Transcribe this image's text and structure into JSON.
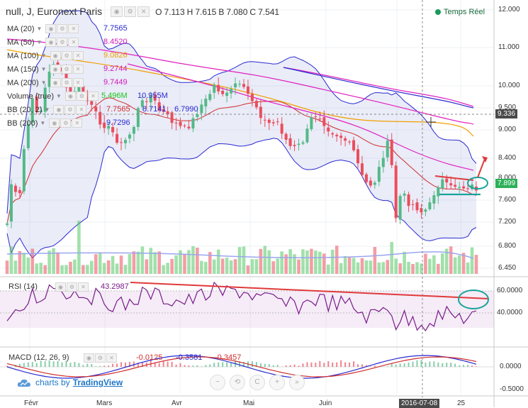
{
  "header": {
    "symbol": "null, J, Euronext Paris",
    "ohlc": [
      {
        "k": "O",
        "v": "7.113"
      },
      {
        "k": "H",
        "v": "7.615"
      },
      {
        "k": "B",
        "v": "7.080"
      },
      {
        "k": "C",
        "v": "7.541"
      }
    ],
    "live_label": "Temps Réel"
  },
  "indicators": [
    {
      "name": "MA (20)",
      "values": [
        {
          "v": "7.7565",
          "color": "#2a2ad0"
        }
      ]
    },
    {
      "name": "MA (50)",
      "values": [
        {
          "v": "8.4520",
          "color": "#d019b8"
        }
      ]
    },
    {
      "name": "MA (100)",
      "values": [
        {
          "v": "9.0826",
          "color": "#f0a000"
        }
      ]
    },
    {
      "name": "MA (150)",
      "values": [
        {
          "v": "9.2744",
          "color": "#d019b8"
        }
      ]
    },
    {
      "name": "MA (200)",
      "values": [
        {
          "v": "9.7449",
          "color": "#d019b8"
        }
      ]
    },
    {
      "name": "Volume (true)",
      "values": [
        {
          "v": "5.496M",
          "color": "#19c519"
        },
        {
          "v": "10.955M",
          "color": "#2a2ad0"
        }
      ]
    },
    {
      "name": "BB (20, 2)",
      "values": [
        {
          "v": "7.7565",
          "color": "#d12d2d"
        },
        {
          "v": "8.7141",
          "color": "#2a2ad0"
        },
        {
          "v": "6.7990",
          "color": "#2a2ad0"
        }
      ]
    },
    {
      "name": "BB (200)",
      "values": [
        {
          "v": "9.7296",
          "color": "#2a2ad0"
        }
      ]
    }
  ],
  "price_axis": [
    "12.000",
    "11.000",
    "10.000",
    "9.500",
    "9.000",
    "8.400",
    "8.000",
    "7.600",
    "7.200",
    "6.800",
    "6.450"
  ],
  "price_tags": {
    "crosshair": "9.336",
    "last": "7.899"
  },
  "rsi": {
    "label": "RSI (14)",
    "value": "43.2987",
    "axis": [
      "60.0000",
      "40.0000"
    ]
  },
  "macd": {
    "label": "MACD (12, 26, 9)",
    "values": [
      {
        "v": "-0.0125",
        "color": "#d12d2d"
      },
      {
        "v": "-0.3581",
        "color": "#2a2ad0"
      },
      {
        "v": "-0.3457",
        "color": "#d12d2d"
      }
    ],
    "axis": [
      "0.0000",
      "-0.5000"
    ]
  },
  "time_axis": [
    "Févr",
    "Mars",
    "Avr",
    "Mai",
    "Juin",
    "25"
  ],
  "date_tag": "2016-07-08",
  "branding": {
    "prefix": "charts by",
    "name": "TradingView"
  },
  "nav_buttons": [
    "−",
    "⟲",
    "C",
    "+",
    "»"
  ],
  "colors": {
    "up": "#53b987",
    "down": "#eb4d5c",
    "accent": "#1b9a5a"
  }
}
